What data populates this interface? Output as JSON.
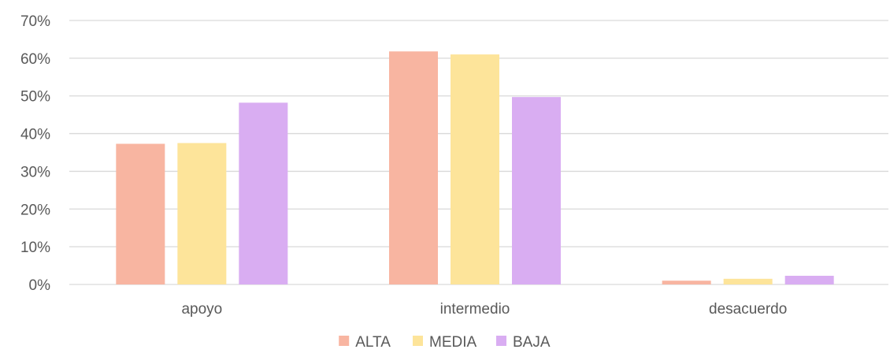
{
  "chart_data": {
    "type": "bar",
    "title": "",
    "xlabel": "",
    "ylabel": "",
    "categories": [
      "apoyo",
      "intermedio",
      "desacuerdo"
    ],
    "series": [
      {
        "name": "ALTA",
        "color": "#f8b5a1",
        "values": [
          37.3,
          61.8,
          1.0
        ]
      },
      {
        "name": "MEDIA",
        "color": "#fde49a",
        "values": [
          37.5,
          61.0,
          1.5
        ]
      },
      {
        "name": "BAJA",
        "color": "#d9adf2",
        "values": [
          48.2,
          49.7,
          2.3
        ]
      }
    ],
    "ylim": [
      0,
      70
    ],
    "yticks": [
      0,
      10,
      20,
      30,
      40,
      50,
      60,
      70
    ],
    "ytick_labels": [
      "0%",
      "10%",
      "20%",
      "30%",
      "40%",
      "50%",
      "60%",
      "70%"
    ],
    "grid": true,
    "legend_position": "bottom"
  }
}
